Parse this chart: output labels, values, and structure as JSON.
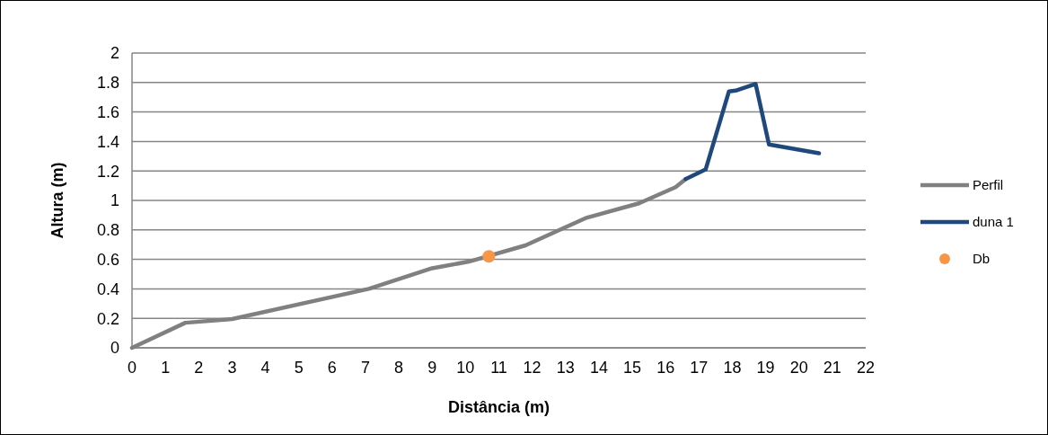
{
  "chart_data": {
    "type": "line",
    "xlabel": "Distância (m)",
    "ylabel": "Altura (m)",
    "xlim": [
      0,
      22
    ],
    "xticks": [
      0,
      1,
      2,
      3,
      4,
      5,
      6,
      7,
      8,
      9,
      10,
      11,
      12,
      13,
      14,
      15,
      16,
      17,
      18,
      19,
      20,
      21,
      22
    ],
    "ylim": [
      0,
      2
    ],
    "yticks": [
      0,
      {
        "value": 0.2,
        "label": "0.2"
      },
      {
        "value": 0.4,
        "label": "0.4"
      },
      {
        "value": 0.6,
        "label": "0.6"
      },
      {
        "value": 0.8,
        "label": "0.8"
      },
      1,
      {
        "value": 1.2,
        "label": "1.2"
      },
      {
        "value": 1.4,
        "label": "1.4"
      },
      {
        "value": 1.6,
        "label": "1.6"
      },
      {
        "value": 1.8,
        "label": "1.8"
      },
      2
    ],
    "grid": "y",
    "legend": "right",
    "marker": "none",
    "series": [
      {
        "name": "Perfil",
        "color": "#808080",
        "x": [
          0,
          1.6,
          3.0,
          7.1,
          9.0,
          10.1,
          11.8,
          13.6,
          15.2,
          16.3,
          16.6
        ],
        "values": [
          0,
          0.17,
          0.195,
          0.4,
          0.54,
          0.585,
          0.695,
          0.88,
          0.98,
          1.09,
          1.145
        ]
      },
      {
        "name": "duna 1",
        "color": "#1f497d",
        "x": [
          16.6,
          17.2,
          17.9,
          18.1,
          18.7,
          19.1,
          20.6
        ],
        "values": [
          1.145,
          1.21,
          1.74,
          1.745,
          1.79,
          1.38,
          1.32
        ]
      },
      {
        "name": "Db",
        "type": "scatter",
        "marker": "circle",
        "color": "#f79646",
        "x": [
          10.7
        ],
        "values": [
          0.62
        ]
      }
    ]
  }
}
